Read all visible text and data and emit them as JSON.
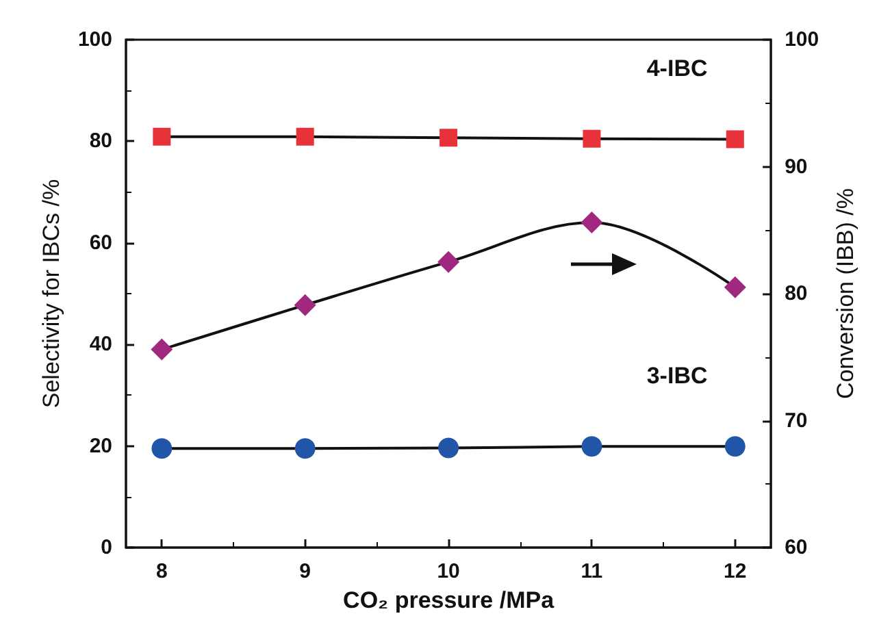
{
  "chart_data": {
    "type": "line",
    "xlabel": "CO₂ pressure /MPa",
    "ylabel": "Selectivity for IBCs /%",
    "y2label": "Conversion (IBB) /%",
    "x": [
      8,
      9,
      10,
      11,
      12
    ],
    "xlim": [
      7.75,
      12.25
    ],
    "xticks": [
      8,
      9,
      10,
      11,
      12
    ],
    "ylim": [
      0,
      100
    ],
    "yticks": [
      0,
      20,
      40,
      60,
      80,
      100
    ],
    "y2lim": [
      60,
      100
    ],
    "y2ticks": [
      60,
      70,
      80,
      90,
      100
    ],
    "series": [
      {
        "name": "4-IBC",
        "color": "#e8323a",
        "marker": "square",
        "values": [
          80.9,
          80.9,
          80.7,
          80.5,
          80.4
        ]
      },
      {
        "name": "3-IBC",
        "color": "#2155a8",
        "marker": "circle",
        "values": [
          19.5,
          19.5,
          19.6,
          19.9,
          19.9
        ]
      },
      {
        "color": "#a0287f",
        "marker": "diamond",
        "axis": "y2",
        "values": [
          75.6,
          79.1,
          82.5,
          85.6,
          80.5
        ]
      }
    ],
    "grid": false,
    "legend": false,
    "line_style": "solid"
  }
}
